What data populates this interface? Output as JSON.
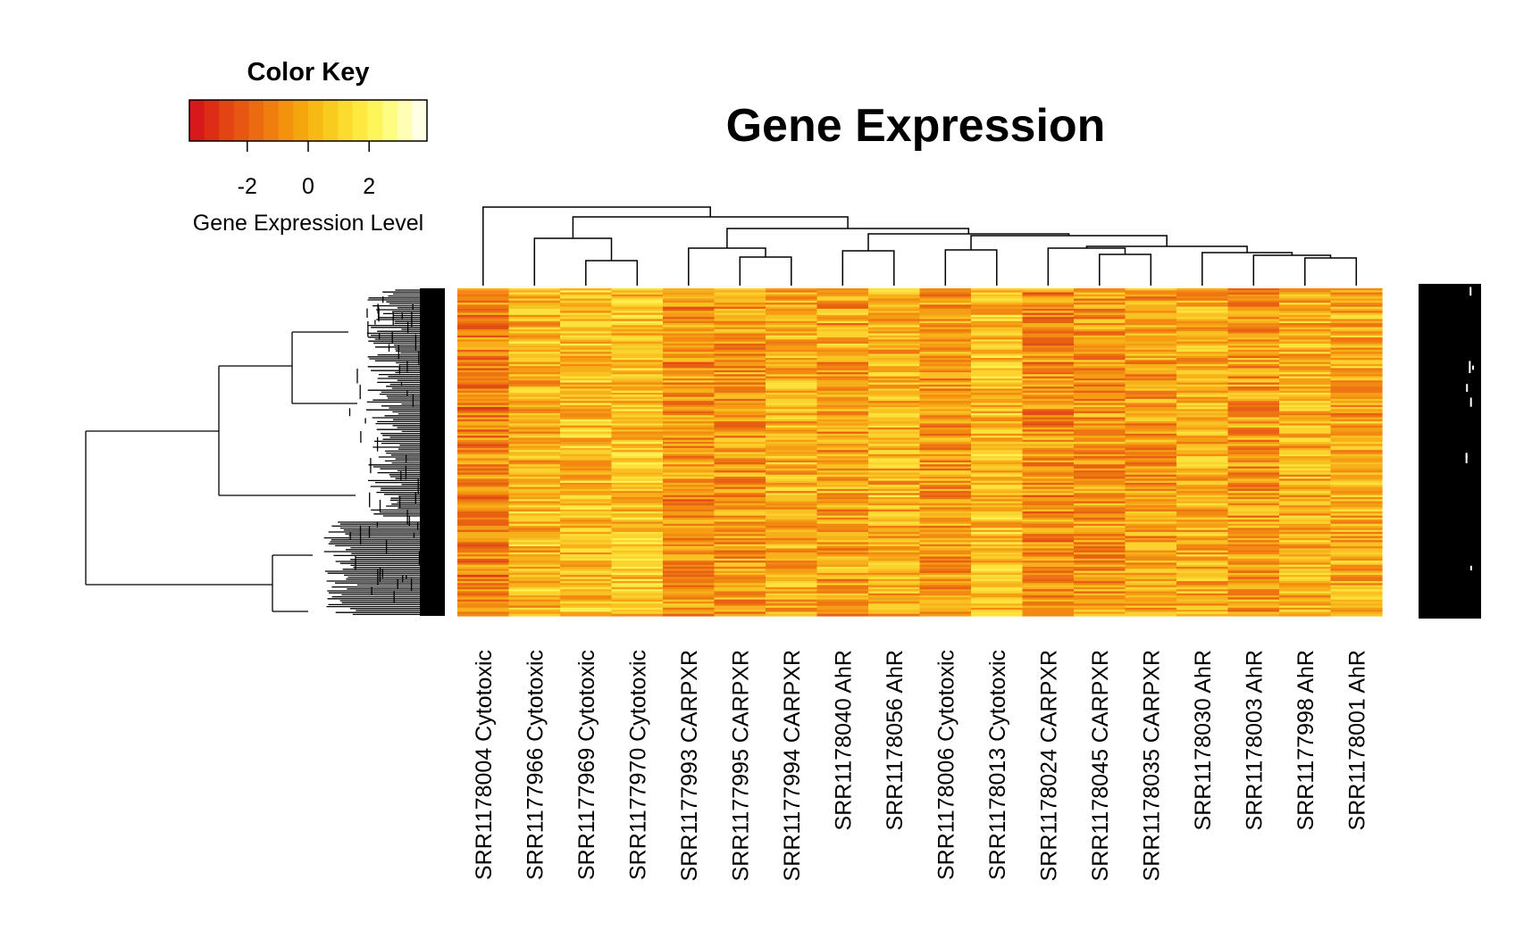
{
  "chart_data": {
    "type": "heatmap",
    "title": "Gene Expression",
    "color_key": {
      "title": "Color Key",
      "label": "Gene Expression Level",
      "range": [
        -3.9,
        3.9
      ],
      "ticks": [
        -2,
        0,
        2
      ],
      "colors": [
        "#d7191c",
        "#de2d16",
        "#e34414",
        "#e85712",
        "#ec6a10",
        "#f07e0e",
        "#f3920c",
        "#f5a60c",
        "#f7b913",
        "#f9cb1f",
        "#fbdb2e",
        "#fde940",
        "#fef55b",
        "#fffc82",
        "#fffeb4",
        "#ffffe6"
      ]
    },
    "columns": [
      "SRR1178004 Cytotoxic",
      "SRR1177966 Cytotoxic",
      "SRR1177969 Cytotoxic",
      "SRR1177970 Cytotoxic",
      "SRR1177993 CARPXR",
      "SRR1177995 CARPXR",
      "SRR1177994 CARPXR",
      "SRR1178040 AhR",
      "SRR1178056 AhR",
      "SRR1178006 Cytotoxic",
      "SRR1178013 Cytotoxic",
      "SRR1178024 CARPXR",
      "SRR1178045 CARPXR",
      "SRR1178035 CARPXR",
      "SRR1178030 AhR",
      "SRR1178003 AhR",
      "SRR1177998 AhR",
      "SRR1178001 AhR"
    ],
    "row_dendrogram": true,
    "column_dendrogram": true
  }
}
